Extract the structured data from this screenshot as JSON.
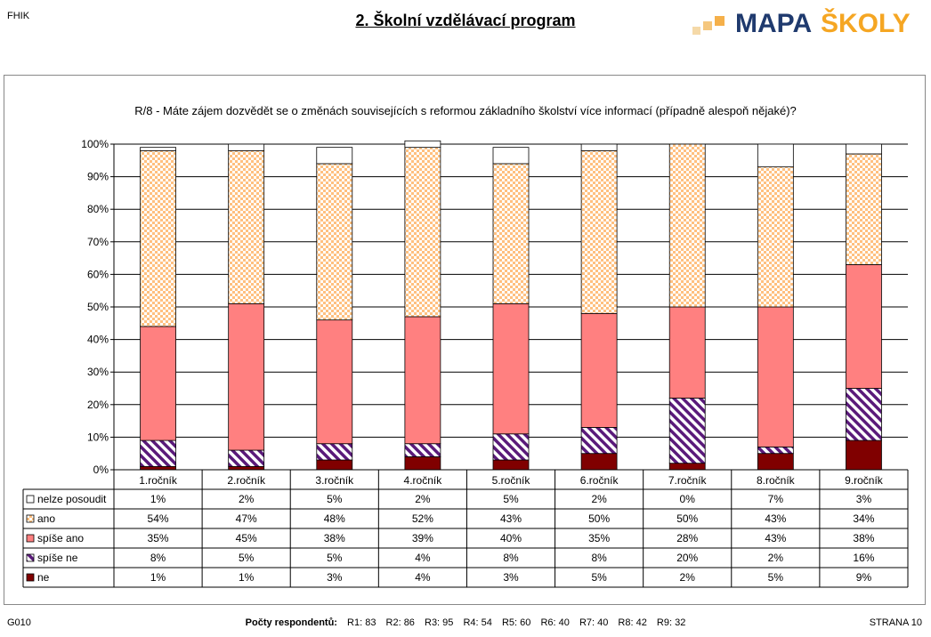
{
  "header": {
    "org_code": "FHIK",
    "title": "2. Školní vzdělávací program",
    "logo": {
      "text_left": "MAPA",
      "text_right": "ŠKOLY",
      "colors": {
        "mapa": "#1f3a6e",
        "skoly": "#f5a623",
        "squares": "#f5c77e"
      }
    }
  },
  "chart_data": {
    "type": "bar",
    "stacked": true,
    "title": "R/8 - Máte zájem dozvědět se o změnách souvisejících s reformou základního školství více informací (případně alespoň nějaké)?",
    "categories": [
      "1.ročník",
      "2.ročník",
      "3.ročník",
      "4.ročník",
      "5.ročník",
      "6.ročník",
      "7.ročník",
      "8.ročník",
      "9.ročník"
    ],
    "series": [
      {
        "name": "ne",
        "color": "#800000",
        "pattern": "solid",
        "values": [
          1,
          1,
          3,
          4,
          3,
          5,
          2,
          5,
          9
        ]
      },
      {
        "name": "spíše ne",
        "color": "#5a1a7a",
        "pattern": "diagonal",
        "values": [
          8,
          5,
          5,
          4,
          8,
          8,
          20,
          2,
          16
        ]
      },
      {
        "name": "spíše ano",
        "color": "#ff8080",
        "pattern": "solid",
        "values": [
          35,
          45,
          38,
          39,
          40,
          35,
          28,
          43,
          38
        ]
      },
      {
        "name": "ano",
        "color": "#ffc080",
        "pattern": "checker",
        "values": [
          54,
          47,
          48,
          52,
          43,
          50,
          50,
          43,
          34
        ]
      },
      {
        "name": "nelze posoudit",
        "color": "#ffffff",
        "pattern": "solid",
        "values": [
          1,
          2,
          5,
          2,
          5,
          2,
          0,
          7,
          3
        ]
      }
    ],
    "table_order": [
      "nelze posoudit",
      "ano",
      "spíše ano",
      "spíše ne",
      "ne"
    ],
    "ylim": [
      0,
      100
    ],
    "yticks": [
      "0%",
      "10%",
      "20%",
      "30%",
      "40%",
      "50%",
      "60%",
      "70%",
      "80%",
      "90%",
      "100%"
    ],
    "value_suffix": "%",
    "grid": true,
    "legend": "data table below chart"
  },
  "footer": {
    "code": "G010",
    "respondents_label": "Počty respondentů:",
    "respondents": [
      "R1: 83",
      "R2: 86",
      "R3: 95",
      "R4: 54",
      "R5: 60",
      "R6: 40",
      "R7: 40",
      "R8: 42",
      "R9: 32"
    ],
    "page": "STRANA 10"
  }
}
